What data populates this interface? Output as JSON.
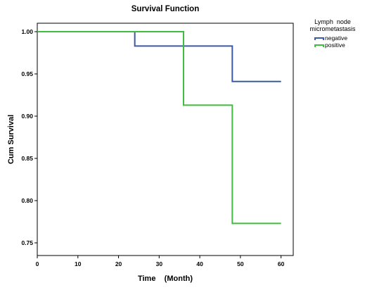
{
  "chart_data": {
    "type": "line",
    "step": true,
    "title": "Survival Function",
    "xlabel": "Time    (Month)",
    "ylabel": "Cum Survival",
    "xlim": [
      0,
      63
    ],
    "ylim": [
      0.735,
      1.01
    ],
    "xticks": [
      0,
      10,
      20,
      30,
      40,
      50,
      60
    ],
    "yticks": [
      1.0,
      0.95,
      0.9,
      0.85,
      0.8,
      0.75
    ],
    "ytick_labels": [
      "1.00",
      "0.95",
      "0.90",
      "0.85",
      "0.80",
      "0.75"
    ],
    "grid": false,
    "legend": {
      "title_lines": [
        "Lymph  node",
        "micrometastasis"
      ],
      "placement": "top-right outside plot"
    },
    "series": [
      {
        "name": "negative",
        "color": "#3c5aa8",
        "x": [
          0,
          24,
          48,
          60
        ],
        "y": [
          1.0,
          0.983,
          0.941,
          0.941
        ]
      },
      {
        "name": "positive",
        "color": "#3fbd3f",
        "x": [
          0,
          36,
          48,
          60
        ],
        "y": [
          1.0,
          0.913,
          0.773,
          0.773
        ]
      }
    ]
  }
}
